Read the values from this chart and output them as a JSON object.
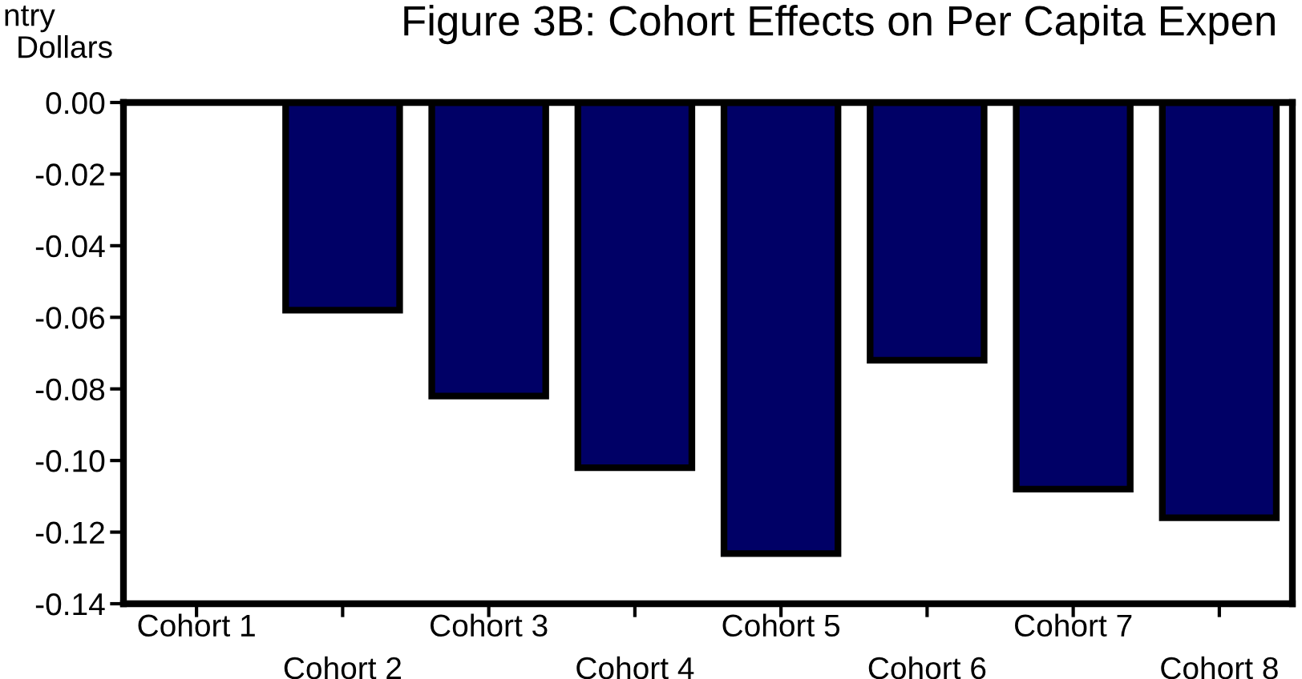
{
  "chart_data": {
    "type": "bar",
    "title": "Figure 3B: Cohort Effects on Per Capita Expen",
    "ylabel": "Dollars",
    "annotations": [
      "ntry"
    ],
    "categories": [
      "Cohort 1",
      "Cohort 2",
      "Cohort 3",
      "Cohort 4",
      "Cohort 5",
      "Cohort 6",
      "Cohort 7",
      "Cohort 8"
    ],
    "values": [
      null,
      -0.058,
      -0.082,
      -0.102,
      -0.126,
      -0.072,
      -0.108,
      -0.116
    ],
    "color": "#000066",
    "ylim": [
      -0.14,
      0
    ],
    "yticks": [
      {
        "value": 0,
        "label": "0.00"
      },
      {
        "value": -0.02,
        "label": "-0.02"
      },
      {
        "value": -0.04,
        "label": "-0.04"
      },
      {
        "value": -0.06,
        "label": "-0.06"
      },
      {
        "value": -0.08,
        "label": "-0.08"
      },
      {
        "value": -0.1,
        "label": "-0.10"
      },
      {
        "value": -0.12,
        "label": "-0.12"
      },
      {
        "value": -0.14,
        "label": "-0.14"
      }
    ],
    "grid": false
  }
}
